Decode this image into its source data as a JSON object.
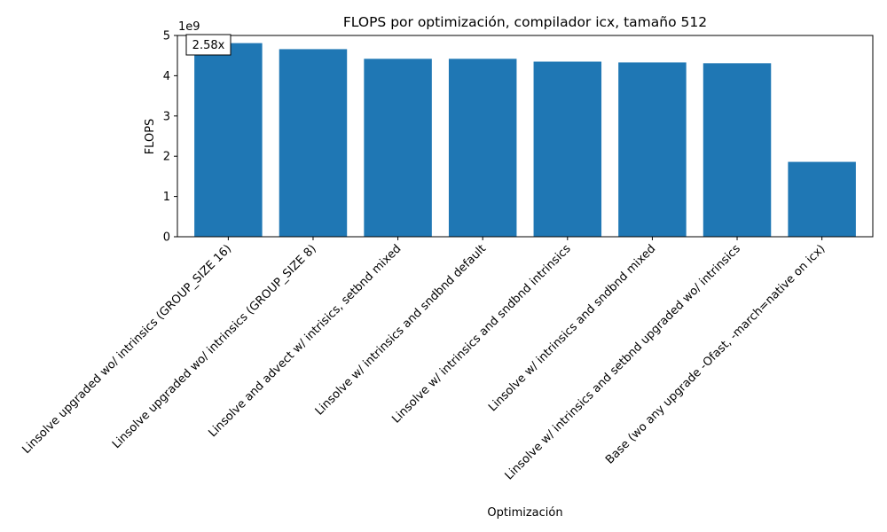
{
  "chart_data": {
    "type": "bar",
    "title": "FLOPS por optimización, compilador icx, tamaño 512",
    "xlabel": "Optimización",
    "ylabel": "FLOPS",
    "scale_label": "1e9",
    "ylim": [
      0,
      5
    ],
    "y_ticks": [
      "0",
      "1",
      "2",
      "3",
      "4",
      "5"
    ],
    "y_tick_values": [
      0,
      1,
      2,
      3,
      4,
      5
    ],
    "grid": false,
    "bar_color": "#1f77b4",
    "annotation": "2.58x",
    "categories": [
      "Linsolve upgraded wo/ intrinsics (GROUP_SIZE 16)",
      "Linsolve upgraded wo/ intrinsics (GROUP_SIZE 8)",
      "Linsolve and advect w/ intrisics, setbnd  mixed",
      "Linsolve w/ intrinsics and sndbnd default",
      "Linsolve w/ intrinsics and sndbnd intrinsics",
      "Linsolve w/ intrinsics and sndbnd mixed",
      "Linsolve w/ intrinsics and setbnd upgraded wo/ intrinsics",
      "Base (wo any upgrade -Ofast, -march=native on icx)"
    ],
    "values": [
      4.81,
      4.66,
      4.42,
      4.42,
      4.35,
      4.33,
      4.31,
      1.86
    ]
  }
}
